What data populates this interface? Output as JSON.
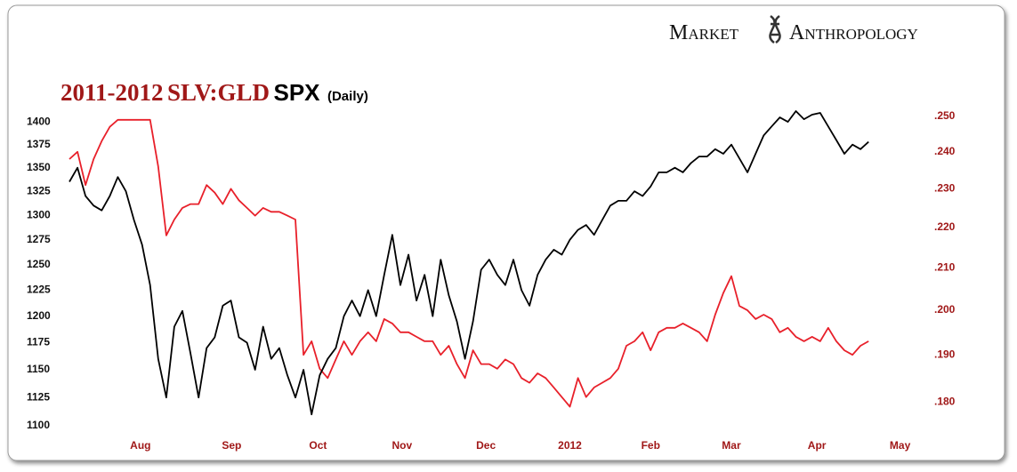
{
  "chart_data": {
    "type": "line",
    "logo": [
      "Market",
      "Anthropology"
    ],
    "title": "2011-2012",
    "subtitle": "(Daily)",
    "log_scale": true,
    "y2_log_scale": true,
    "xlim": [
      0,
      110
    ],
    "xticks": [
      {
        "value": 8.8,
        "label": "Aug"
      },
      {
        "value": 20.1,
        "label": "Sep"
      },
      {
        "value": 30.8,
        "label": "Oct"
      },
      {
        "value": 41.2,
        "label": "Nov"
      },
      {
        "value": 51.6,
        "label": "Dec"
      },
      {
        "value": 62,
        "label": "2012"
      },
      {
        "value": 72,
        "label": "Feb"
      },
      {
        "value": 82,
        "label": "Mar"
      },
      {
        "value": 92.6,
        "label": "Apr"
      },
      {
        "value": 102.9,
        "label": "May"
      }
    ],
    "ylim": [
      1090,
      1422
    ],
    "yticks": [
      1400,
      1375,
      1350,
      1325,
      1300,
      1275,
      1250,
      1225,
      1200,
      1175,
      1150,
      1125,
      1100
    ],
    "y2lim": [
      0.1728,
      0.2541
    ],
    "y2ticks": [
      {
        "value": 0.25,
        "label": ".250"
      },
      {
        "value": 0.24,
        "label": ".240"
      },
      {
        "value": 0.23,
        "label": ".230"
      },
      {
        "value": 0.22,
        "label": ".220"
      },
      {
        "value": 0.21,
        "label": ".210"
      },
      {
        "value": 0.2,
        "label": ".200"
      },
      {
        "value": 0.19,
        "label": ".190"
      },
      {
        "value": 0.18,
        "label": ".180"
      }
    ],
    "series": [
      {
        "name": "SPX",
        "color": "#000000",
        "values": [
          1335,
          1350,
          1320,
          1310,
          1305,
          1320,
          1340,
          1325,
          1295,
          1270,
          1230,
          1160,
          1125,
          1190,
          1205,
          1165,
          1125,
          1170,
          1180,
          1210,
          1215,
          1180,
          1175,
          1150,
          1190,
          1160,
          1170,
          1145,
          1125,
          1150,
          1110,
          1145,
          1160,
          1170,
          1200,
          1215,
          1200,
          1225,
          1200,
          1240,
          1280,
          1230,
          1260,
          1215,
          1240,
          1200,
          1255,
          1220,
          1195,
          1160,
          1195,
          1245,
          1255,
          1240,
          1230,
          1255,
          1225,
          1210,
          1240,
          1255,
          1265,
          1260,
          1275,
          1285,
          1290,
          1280,
          1295,
          1310,
          1315,
          1315,
          1325,
          1320,
          1330,
          1345,
          1345,
          1350,
          1345,
          1355,
          1362,
          1362,
          1370,
          1365,
          1375,
          1360,
          1345,
          1365,
          1385,
          1395,
          1405,
          1400,
          1412,
          1403,
          1408,
          1410,
          1395,
          1380,
          1365,
          1375,
          1370,
          1378
        ]
      },
      {
        "name": "SLV:GLD",
        "color": "#e8202a",
        "axis": "y2",
        "values": [
          0.238,
          0.24,
          0.231,
          0.238,
          0.243,
          0.247,
          0.249,
          0.249,
          0.249,
          0.249,
          0.249,
          0.236,
          0.218,
          0.222,
          0.225,
          0.226,
          0.226,
          0.231,
          0.229,
          0.226,
          0.23,
          0.227,
          0.225,
          0.223,
          0.225,
          0.224,
          0.224,
          0.223,
          0.222,
          0.19,
          0.193,
          0.187,
          0.185,
          0.189,
          0.193,
          0.19,
          0.193,
          0.195,
          0.193,
          0.198,
          0.197,
          0.195,
          0.195,
          0.194,
          0.193,
          0.193,
          0.19,
          0.192,
          0.188,
          0.185,
          0.191,
          0.188,
          0.188,
          0.187,
          0.189,
          0.188,
          0.185,
          0.184,
          0.186,
          0.185,
          0.183,
          0.181,
          0.179,
          0.185,
          0.181,
          0.183,
          0.184,
          0.185,
          0.187,
          0.192,
          0.193,
          0.195,
          0.191,
          0.195,
          0.196,
          0.196,
          0.197,
          0.196,
          0.195,
          0.193,
          0.199,
          0.204,
          0.208,
          0.201,
          0.2,
          0.198,
          0.199,
          0.198,
          0.195,
          0.196,
          0.194,
          0.193,
          0.194,
          0.193,
          0.196,
          0.193,
          0.191,
          0.19,
          0.192,
          0.193
        ]
      }
    ]
  }
}
